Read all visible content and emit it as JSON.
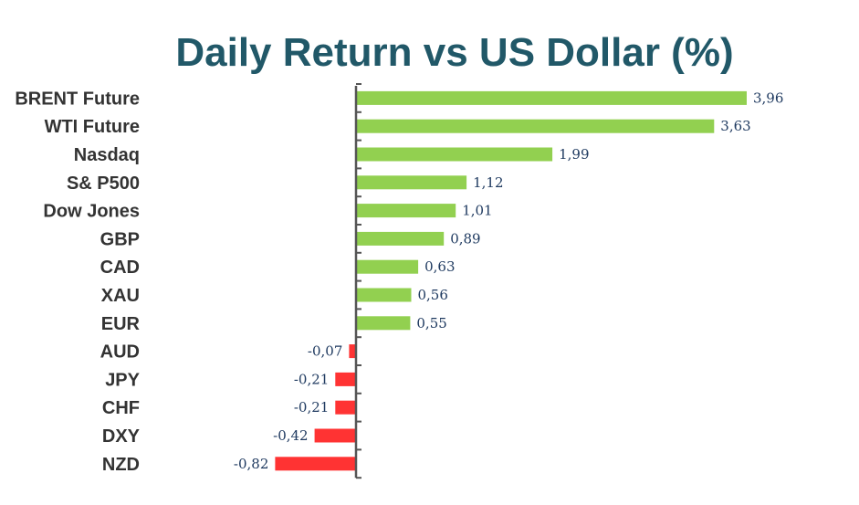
{
  "chart_data": {
    "type": "bar",
    "orientation": "horizontal",
    "title": "Daily Return vs US Dollar (%)",
    "xlabel": "",
    "ylabel": "",
    "categories": [
      "BRENT Future",
      "WTI Future",
      "Nasdaq",
      "S& P500",
      "Dow Jones",
      "GBP",
      "CAD",
      "XAU",
      "EUR",
      "AUD",
      "JPY",
      "CHF",
      "DXY",
      "NZD"
    ],
    "values": [
      3.96,
      3.63,
      1.99,
      1.12,
      1.01,
      0.89,
      0.63,
      0.56,
      0.55,
      -0.07,
      -0.21,
      -0.21,
      -0.42,
      -0.82
    ],
    "value_labels": [
      "3,96",
      "3,63",
      "1,99",
      "1,12",
      "1,01",
      "0,89",
      "0,63",
      "0,56",
      "0,55",
      "-0,07",
      "-0,21",
      "-0,21",
      "-0,42",
      "-0,82"
    ],
    "xlim": [
      -0.82,
      3.96
    ],
    "grid": false,
    "legend": "none",
    "colors": {
      "positive": "#92d050",
      "negative": "#ff3333",
      "title": "#215868",
      "axis": "#555555"
    }
  }
}
